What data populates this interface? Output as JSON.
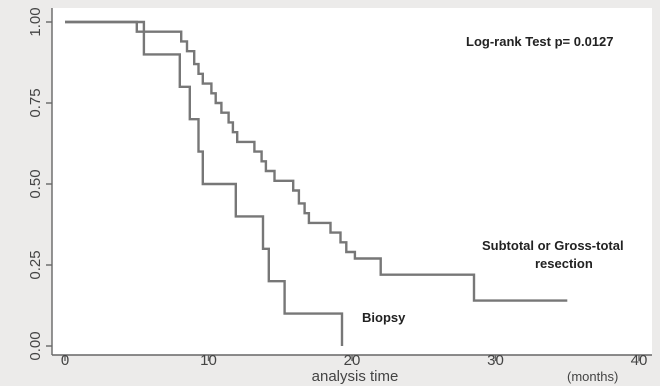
{
  "chart_data": {
    "type": "line",
    "title": "",
    "xlabel": "analysis time",
    "x_unit_label": "(months)",
    "ylabel": "",
    "xlim": [
      0,
      40
    ],
    "ylim": [
      0,
      1
    ],
    "x_ticks": [
      0,
      10,
      20,
      30,
      40
    ],
    "y_ticks": [
      "0.00",
      "0.25",
      "0.50",
      "0.75",
      "1.00"
    ],
    "grid": false,
    "annotations": {
      "test": "Log-rank Test p= 0.0127",
      "resection_line1": "Subtotal or Gross-total",
      "resection_line2": "resection",
      "biopsy": "Biopsy"
    },
    "series": [
      {
        "name": "Subtotal or Gross-total resection",
        "step_points": [
          [
            0,
            1.0
          ],
          [
            5,
            1.0
          ],
          [
            5,
            0.97
          ],
          [
            8.1,
            0.97
          ],
          [
            8.1,
            0.94
          ],
          [
            8.5,
            0.94
          ],
          [
            8.5,
            0.91
          ],
          [
            9.0,
            0.91
          ],
          [
            9.0,
            0.87
          ],
          [
            9.3,
            0.87
          ],
          [
            9.3,
            0.84
          ],
          [
            9.6,
            0.84
          ],
          [
            9.6,
            0.81
          ],
          [
            10.2,
            0.81
          ],
          [
            10.2,
            0.78
          ],
          [
            10.5,
            0.78
          ],
          [
            10.5,
            0.75
          ],
          [
            10.9,
            0.75
          ],
          [
            10.9,
            0.72
          ],
          [
            11.4,
            0.72
          ],
          [
            11.4,
            0.69
          ],
          [
            11.7,
            0.69
          ],
          [
            11.7,
            0.66
          ],
          [
            12.0,
            0.66
          ],
          [
            12.0,
            0.63
          ],
          [
            13.2,
            0.63
          ],
          [
            13.2,
            0.6
          ],
          [
            13.7,
            0.6
          ],
          [
            13.7,
            0.57
          ],
          [
            14.0,
            0.57
          ],
          [
            14.0,
            0.54
          ],
          [
            14.6,
            0.54
          ],
          [
            14.6,
            0.51
          ],
          [
            15.9,
            0.51
          ],
          [
            15.9,
            0.48
          ],
          [
            16.3,
            0.48
          ],
          [
            16.3,
            0.44
          ],
          [
            16.7,
            0.44
          ],
          [
            16.7,
            0.41
          ],
          [
            17.0,
            0.41
          ],
          [
            17.0,
            0.38
          ],
          [
            18.5,
            0.38
          ],
          [
            18.5,
            0.35
          ],
          [
            19.2,
            0.35
          ],
          [
            19.2,
            0.32
          ],
          [
            19.6,
            0.32
          ],
          [
            19.6,
            0.29
          ],
          [
            20.2,
            0.29
          ],
          [
            20.2,
            0.27
          ],
          [
            22.0,
            0.27
          ],
          [
            22.0,
            0.22
          ],
          [
            28.5,
            0.22
          ],
          [
            28.5,
            0.14
          ],
          [
            35,
            0.14
          ]
        ]
      },
      {
        "name": "Biopsy",
        "step_points": [
          [
            0,
            1.0
          ],
          [
            5.5,
            1.0
          ],
          [
            5.5,
            0.9
          ],
          [
            8.0,
            0.9
          ],
          [
            8.0,
            0.8
          ],
          [
            8.7,
            0.8
          ],
          [
            8.7,
            0.7
          ],
          [
            9.3,
            0.7
          ],
          [
            9.3,
            0.6
          ],
          [
            9.6,
            0.6
          ],
          [
            9.6,
            0.5
          ],
          [
            11.9,
            0.5
          ],
          [
            11.9,
            0.4
          ],
          [
            13.8,
            0.4
          ],
          [
            13.8,
            0.3
          ],
          [
            14.2,
            0.3
          ],
          [
            14.2,
            0.2
          ],
          [
            15.3,
            0.2
          ],
          [
            15.3,
            0.1
          ],
          [
            19.3,
            0.1
          ],
          [
            19.3,
            0.0
          ]
        ]
      }
    ]
  }
}
